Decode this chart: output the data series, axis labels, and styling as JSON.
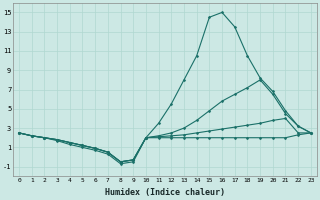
{
  "xlabel": "Humidex (Indice chaleur)",
  "background_color": "#cce8e4",
  "grid_color": "#b0d8d0",
  "line_color": "#1a7068",
  "xlim": [
    -0.5,
    23.5
  ],
  "ylim": [
    -2,
    16
  ],
  "yticks": [
    -1,
    1,
    3,
    5,
    7,
    9,
    11,
    13,
    15
  ],
  "xticks": [
    0,
    1,
    2,
    3,
    4,
    5,
    6,
    7,
    8,
    9,
    10,
    11,
    12,
    13,
    14,
    15,
    16,
    17,
    18,
    19,
    20,
    21,
    22,
    23
  ],
  "series": [
    {
      "x": [
        0,
        1,
        2,
        3,
        4,
        5,
        6,
        7,
        8,
        9,
        10,
        11,
        12,
        13,
        14,
        15,
        16,
        17,
        18,
        19,
        20,
        21,
        22,
        23
      ],
      "y": [
        2.5,
        2.2,
        2.0,
        1.7,
        1.3,
        1.0,
        0.7,
        0.3,
        -0.7,
        -0.5,
        2.0,
        2.0,
        2.0,
        2.0,
        2.0,
        2.0,
        2.0,
        2.0,
        2.0,
        2.0,
        2.0,
        2.0,
        2.3,
        2.5
      ]
    },
    {
      "x": [
        0,
        1,
        2,
        3,
        4,
        5,
        6,
        7,
        8,
        9,
        10,
        11,
        12,
        13,
        14,
        15,
        16,
        17,
        18,
        19,
        20,
        21,
        22,
        23
      ],
      "y": [
        2.5,
        2.2,
        2.0,
        1.8,
        1.5,
        1.2,
        0.9,
        0.5,
        -0.5,
        -0.3,
        2.0,
        2.1,
        2.2,
        2.3,
        2.5,
        2.7,
        2.9,
        3.1,
        3.3,
        3.5,
        3.8,
        4.0,
        2.5,
        2.5
      ]
    },
    {
      "x": [
        0,
        1,
        2,
        3,
        4,
        5,
        6,
        7,
        8,
        9,
        10,
        11,
        12,
        13,
        14,
        15,
        16,
        17,
        18,
        19,
        20,
        21,
        22,
        23
      ],
      "y": [
        2.5,
        2.2,
        2.0,
        1.8,
        1.5,
        1.2,
        0.9,
        0.5,
        -0.5,
        -0.3,
        2.0,
        2.2,
        2.5,
        3.0,
        3.8,
        4.8,
        5.8,
        6.5,
        7.2,
        8.0,
        6.5,
        4.5,
        3.2,
        2.5
      ]
    },
    {
      "x": [
        0,
        1,
        2,
        3,
        4,
        5,
        6,
        7,
        8,
        9,
        10,
        11,
        12,
        13,
        14,
        15,
        16,
        17,
        18,
        19,
        20,
        21,
        22,
        23
      ],
      "y": [
        2.5,
        2.2,
        2.0,
        1.8,
        1.5,
        1.2,
        0.9,
        0.5,
        -0.5,
        -0.3,
        2.0,
        3.5,
        5.5,
        8.0,
        10.5,
        14.5,
        15.0,
        13.5,
        10.5,
        8.2,
        6.8,
        4.8,
        3.2,
        2.5
      ]
    }
  ]
}
